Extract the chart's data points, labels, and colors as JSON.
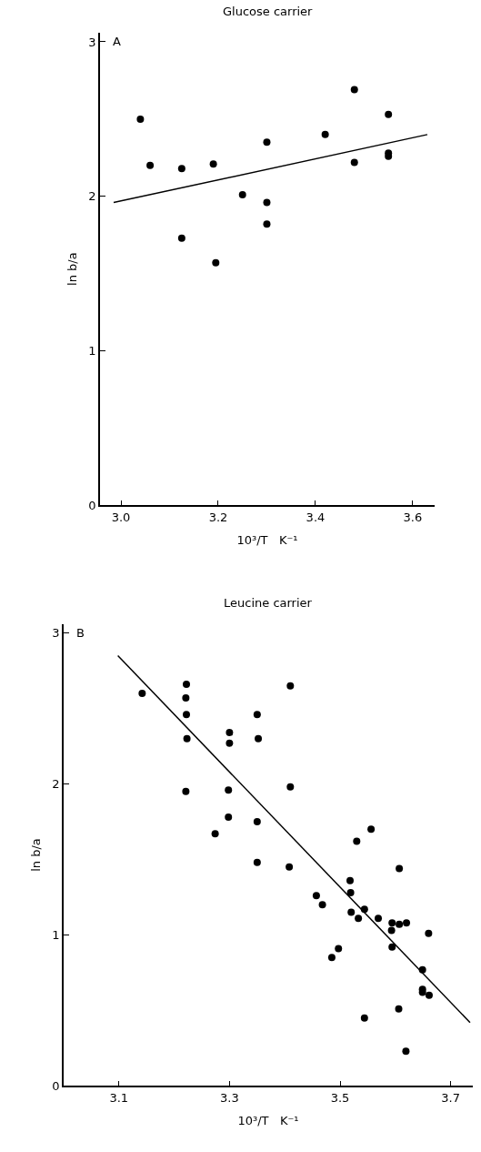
{
  "chart_data": [
    {
      "type": "scatter",
      "title": "Glucose carrier",
      "xlabel": "10³/T   K⁻¹",
      "ylabel": "ln b/a",
      "annotations": [
        "A"
      ],
      "xlim": [
        2.957,
        3.645
      ],
      "ylim": [
        0,
        3.06
      ],
      "xticks": [
        {
          "value": 3.0,
          "label": "3.0"
        },
        3.2,
        3.4,
        3.6
      ],
      "yticks": [
        0,
        1,
        2,
        3
      ],
      "grid": false,
      "series": [
        {
          "marker": "circle",
          "color": "#000000",
          "x": [
            3.04,
            3.06,
            3.125,
            3.19,
            3.125,
            3.195,
            3.25,
            3.3,
            3.3,
            3.3,
            3.42,
            3.48,
            3.48,
            3.55,
            3.55,
            3.55
          ],
          "values": [
            2.5,
            2.2,
            2.18,
            2.21,
            1.73,
            1.57,
            2.01,
            2.35,
            1.96,
            1.82,
            2.4,
            2.69,
            2.22,
            2.53,
            2.28,
            2.26
          ]
        },
        {
          "type": "line",
          "marker": "none",
          "color": "#000000",
          "x": [
            2.985,
            3.63
          ],
          "values": [
            1.96,
            2.4
          ]
        }
      ]
    },
    {
      "type": "scatter",
      "title": "Leucine carrier",
      "xlabel": "10³/T   K⁻¹",
      "ylabel": "ln b/a",
      "annotations": [
        "B"
      ],
      "xlim": [
        3.0,
        3.74
      ],
      "ylim": [
        0,
        3.06
      ],
      "xticks": [
        3.1,
        3.3,
        3.5,
        3.7
      ],
      "yticks": [
        0,
        1,
        2,
        3
      ],
      "grid": false,
      "series": [
        {
          "marker": "circle",
          "color": "#000000",
          "x": [
            3.142,
            3.222,
            3.221,
            3.222,
            3.223,
            3.221,
            3.3,
            3.3,
            3.298,
            3.298,
            3.274,
            3.35,
            3.352,
            3.35,
            3.41,
            3.41,
            3.556,
            3.53,
            3.35,
            3.408,
            3.607,
            3.518,
            3.519,
            3.457,
            3.468,
            3.52,
            3.544,
            3.533,
            3.569,
            3.594,
            3.607,
            3.62,
            3.593,
            3.66,
            3.594,
            3.497,
            3.485,
            3.649,
            3.649,
            3.649,
            3.661,
            3.606,
            3.544,
            3.619
          ],
          "values": [
            2.6,
            2.66,
            2.57,
            2.46,
            2.3,
            1.95,
            2.34,
            2.27,
            1.96,
            1.78,
            1.67,
            2.46,
            2.3,
            1.75,
            2.65,
            1.98,
            1.7,
            1.62,
            1.48,
            1.45,
            1.44,
            1.36,
            1.28,
            1.26,
            1.2,
            1.15,
            1.17,
            1.11,
            1.11,
            1.08,
            1.07,
            1.08,
            1.03,
            1.01,
            0.92,
            0.91,
            0.85,
            0.77,
            0.64,
            0.62,
            0.6,
            0.51,
            0.45,
            0.23
          ]
        },
        {
          "type": "line",
          "marker": "none",
          "color": "#000000",
          "x": [
            3.098,
            3.735
          ],
          "values": [
            2.85,
            0.42
          ]
        }
      ]
    }
  ]
}
